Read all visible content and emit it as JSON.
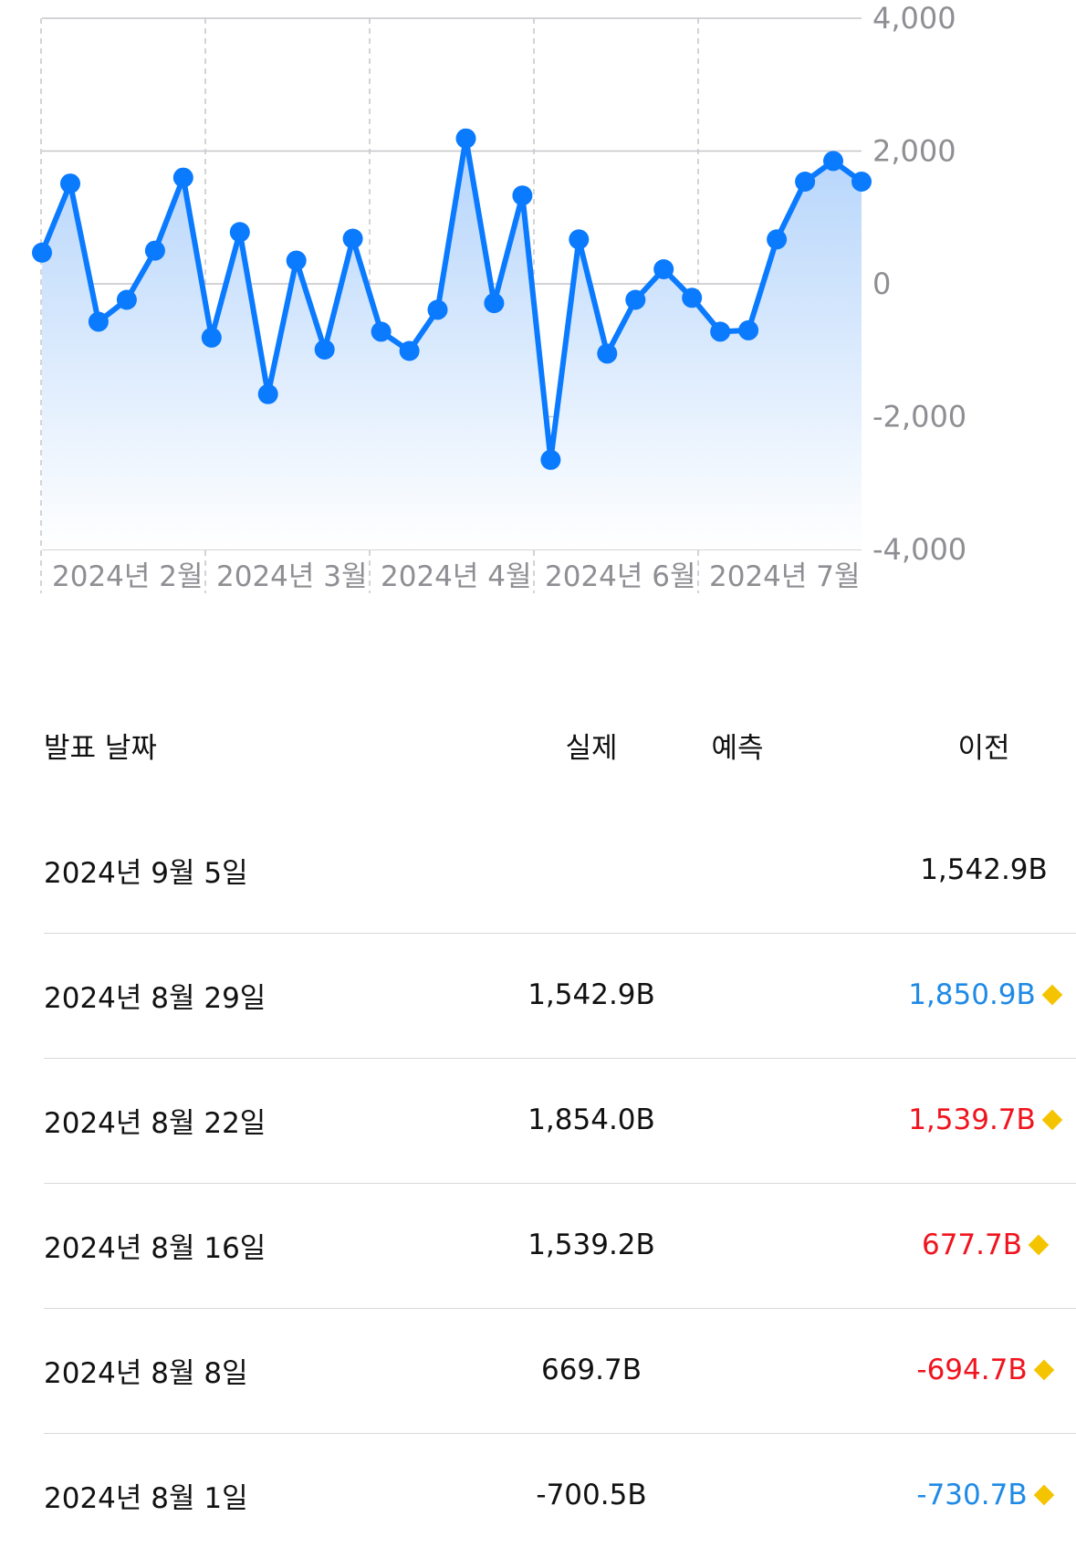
{
  "chart_data": {
    "type": "area",
    "x_tick_labels": [
      "2024년 2월",
      "2024년 3월",
      "2024년 4월",
      "2024년 6월",
      "2024년 7월"
    ],
    "y_tick_labels": [
      "4,000",
      "2,000",
      "0",
      "-2,000",
      "-4,000"
    ],
    "ylim": [
      -4000,
      4000
    ],
    "grid": true,
    "series": [
      {
        "values": [
          470,
          1510,
          -570,
          -240,
          500,
          1600,
          -810,
          780,
          -1660,
          350,
          -990,
          680,
          -720,
          -1010,
          -390,
          2190,
          -290,
          1330,
          -2650,
          670,
          -1050,
          -240,
          220,
          -210,
          -720,
          -700,
          670,
          1540,
          1850,
          1540
        ]
      }
    ],
    "colors": {
      "line": "#0a7aff",
      "fill_top": "#b4d4fb",
      "fill_bottom": "#ffffff"
    }
  },
  "table": {
    "headers": {
      "date": "발표 날짜",
      "actual": "실제",
      "forecast": "예측",
      "previous": "이전"
    },
    "rows": [
      {
        "date": "2024년 9월 5일",
        "actual": "",
        "previous": "1,542.9B",
        "prev_color": "black",
        "marker": false
      },
      {
        "date": "2024년 8월 29일",
        "actual": "1,542.9B",
        "previous": "1,850.9B",
        "prev_color": "blue",
        "marker": true
      },
      {
        "date": "2024년 8월 22일",
        "actual": "1,854.0B",
        "previous": "1,539.7B",
        "prev_color": "red",
        "marker": true
      },
      {
        "date": "2024년 8월 16일",
        "actual": "1,539.2B",
        "previous": "677.7B",
        "prev_color": "red",
        "marker": true
      },
      {
        "date": "2024년 8월 8일",
        "actual": "669.7B",
        "previous": "-694.7B",
        "prev_color": "red",
        "marker": true
      },
      {
        "date": "2024년 8월 1일",
        "actual": "-700.5B",
        "previous": "-730.7B",
        "prev_color": "blue",
        "marker": true
      }
    ],
    "marker_icon": "yellow-diamond-icon"
  }
}
